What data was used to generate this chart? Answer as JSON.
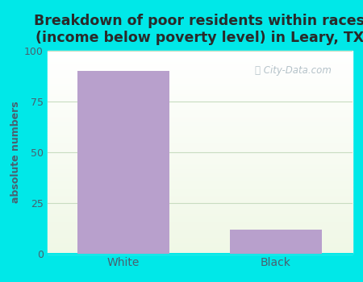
{
  "categories": [
    "White",
    "Black"
  ],
  "values": [
    90,
    12
  ],
  "bar_color": "#b8a0cc",
  "bar_width": 0.6,
  "title": "Breakdown of poor residents within races\n(income below poverty level) in Leary, TX",
  "ylabel": "absolute numbers",
  "ylim": [
    0,
    100
  ],
  "yticks": [
    0,
    25,
    50,
    75,
    100
  ],
  "background_color": "#00e8e8",
  "title_fontsize": 12.5,
  "title_color": "#2a2a2a",
  "axis_label_color": "#4a6070",
  "tick_label_color": "#4a6070",
  "grid_color": "#c8dcc0",
  "watermark_text": "City-Data.com",
  "watermark_color": "#a8b8c0"
}
